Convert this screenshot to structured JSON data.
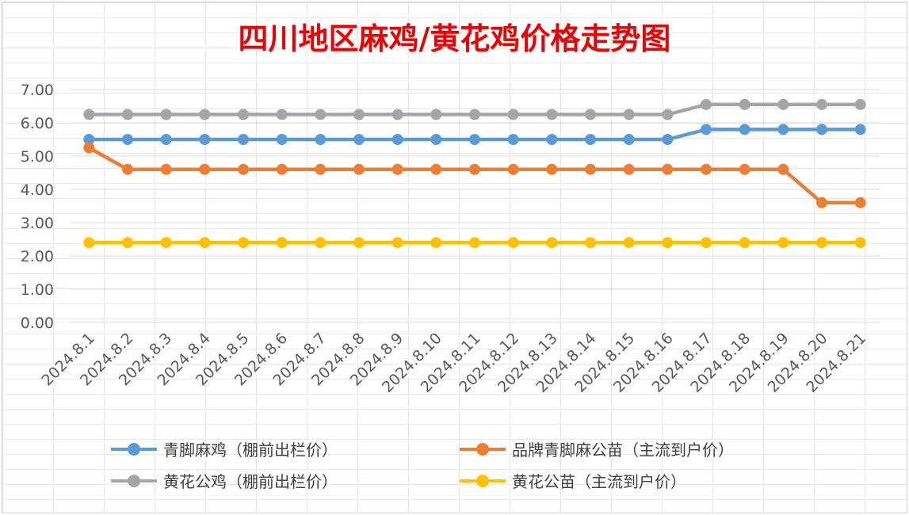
{
  "chart_data": {
    "type": "line",
    "title": "四川地区麻鸡/黄花鸡价格走势图",
    "categories": [
      "2024.8.1",
      "2024.8.2",
      "2024.8.3",
      "2024.8.4",
      "2024.8.5",
      "2024.8.6",
      "2024.8.7",
      "2024.8.8",
      "2024.8.9",
      "2024.8.10",
      "2024.8.11",
      "2024.8.12",
      "2024.8.13",
      "2024.8.14",
      "2024.8.15",
      "2024.8.16",
      "2024.8.17",
      "2024.8.18",
      "2024.8.19",
      "2024.8.20",
      "2024.8.21"
    ],
    "ylim": [
      0,
      7
    ],
    "yticks": [
      "0.00",
      "1.00",
      "2.00",
      "3.00",
      "4.00",
      "5.00",
      "6.00",
      "7.00"
    ],
    "grid": true,
    "legend_position": "bottom",
    "series": [
      {
        "name": "青脚麻鸡（棚前出栏价）",
        "color": "#5b9bd5",
        "values": [
          5.5,
          5.5,
          5.5,
          5.5,
          5.5,
          5.5,
          5.5,
          5.5,
          5.5,
          5.5,
          5.5,
          5.5,
          5.5,
          5.5,
          5.5,
          5.5,
          5.8,
          5.8,
          5.8,
          5.8,
          5.8
        ]
      },
      {
        "name": "品牌青脚麻公苗（主流到户价）",
        "color": "#ed7d31",
        "values": [
          5.25,
          4.6,
          4.6,
          4.6,
          4.6,
          4.6,
          4.6,
          4.6,
          4.6,
          4.6,
          4.6,
          4.6,
          4.6,
          4.6,
          4.6,
          4.6,
          4.6,
          4.6,
          4.6,
          3.6,
          3.6
        ]
      },
      {
        "name": "黄花公鸡（棚前出栏价）",
        "color": "#a5a5a5",
        "values": [
          6.25,
          6.25,
          6.25,
          6.25,
          6.25,
          6.25,
          6.25,
          6.25,
          6.25,
          6.25,
          6.25,
          6.25,
          6.25,
          6.25,
          6.25,
          6.25,
          6.55,
          6.55,
          6.55,
          6.55,
          6.55
        ]
      },
      {
        "name": "黄花公苗（主流到户价）",
        "color": "#ffc000",
        "values": [
          2.4,
          2.4,
          2.4,
          2.4,
          2.4,
          2.4,
          2.4,
          2.4,
          2.4,
          2.4,
          2.4,
          2.4,
          2.4,
          2.4,
          2.4,
          2.4,
          2.4,
          2.4,
          2.4,
          2.4,
          2.4
        ]
      }
    ]
  }
}
